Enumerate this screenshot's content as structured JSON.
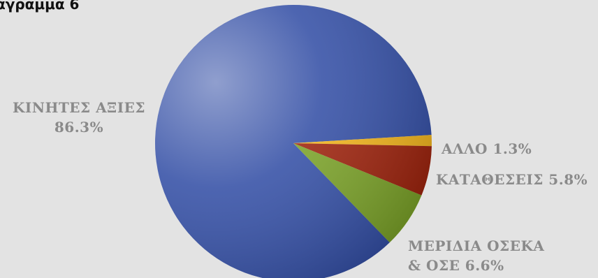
{
  "title": "αγραμμα 6",
  "chart_data": {
    "type": "pie",
    "title": "αγραμμα 6",
    "slices": [
      {
        "label_line1": "ΚΙΝΗΤΕΣ ΑΞΙΕΣ",
        "label_line2": "86.3%",
        "value": 86.3,
        "color": "#3550a6"
      },
      {
        "label_line1": "ΑΛΛΟ 1.3%",
        "label_line2": "",
        "value": 1.3,
        "color": "#f2b51e"
      },
      {
        "label_line1": "ΚΑΤΑΘΕΣΕΙΣ 5.8%",
        "label_line2": "",
        "value": 5.8,
        "color": "#9e240e"
      },
      {
        "label_line1": "ΜΕΡΙΔΙΑ ΟΣΕΚΑ",
        "label_line2": "& ΟΣΕ 6.6%",
        "value": 6.6,
        "color": "#7ca32a"
      }
    ]
  }
}
